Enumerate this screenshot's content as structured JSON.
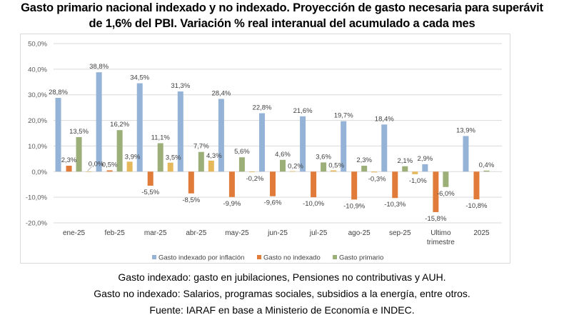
{
  "title_line1": "Gasto primario nacional indexado y no indexado. Proyección de gasto necesaria para superávit",
  "title_line2": "de 1,6% del PBI. Variación % real interanual del acumulado a cada mes",
  "notes": [
    "Gasto indexado: gasto en jubilaciones, Pensiones no contributivas y AUH.",
    "Gasto no indexado: Salarios, programas sociales, subsidios a la energía, entre otros.",
    "Fuente: IARAF en base a Ministerio de Economía e INDEC."
  ],
  "chart_data": {
    "type": "bar",
    "title": "Gasto primario nacional indexado y no indexado. Proyección de gasto necesaria para superávit de 1,6% del PBI. Variación % real interanual del acumulado a cada mes",
    "xlabel": "",
    "ylabel": "",
    "ylim": [
      -20,
      50
    ],
    "yticks": [
      50,
      40,
      30,
      20,
      10,
      0,
      -10,
      -20
    ],
    "ytick_labels": [
      "50,0%",
      "40,0%",
      "30,0%",
      "20,0%",
      "10,0%",
      "0,0%",
      "-10,0%",
      "-20,0%"
    ],
    "grid": true,
    "legend_position": "bottom",
    "categories": [
      "ene-25",
      "feb-25",
      "mar-25",
      "abr-25",
      "may-25",
      "jun-25",
      "jul-25",
      "ago-25",
      "sep-25",
      "Ultimo trimestre",
      "2025"
    ],
    "category_lines": [
      [
        "ene-25"
      ],
      [
        "feb-25"
      ],
      [
        "mar-25"
      ],
      [
        "abr-25"
      ],
      [
        "may-25"
      ],
      [
        "jun-25"
      ],
      [
        "jul-25"
      ],
      [
        "ago-25"
      ],
      [
        "sep-25"
      ],
      [
        "Ultimo",
        "trimestre"
      ],
      [
        "2025"
      ]
    ],
    "series": [
      {
        "name": "Gasto indexado por inflación",
        "color": "#95b3d7",
        "in_legend": true,
        "values": [
          28.8,
          38.8,
          34.5,
          31.3,
          28.4,
          22.8,
          21.6,
          19.7,
          18.4,
          2.9,
          13.9
        ],
        "labels": [
          "28,8%",
          "38,8%",
          "34,5%",
          "31,3%",
          "28,4%",
          "22,8%",
          "21,6%",
          "19,7%",
          "18,4%",
          "2,9%",
          "13,9%"
        ]
      },
      {
        "name": "Gasto no indexado",
        "color": "#e07b39",
        "in_legend": true,
        "values": [
          2.3,
          0.5,
          -5.5,
          -8.5,
          -9.9,
          -9.6,
          -10.0,
          -10.9,
          -10.3,
          -15.8,
          -10.8
        ],
        "labels": [
          "2,3%",
          "0,5%",
          "-5,5%",
          "-8,5%",
          "-9,9%",
          "-9,6%",
          "-10,0%",
          "-10,9%",
          "-10,3%",
          "-15,8%",
          "-10,8%"
        ]
      },
      {
        "name": "Gasto primario",
        "color": "#9caf78",
        "in_legend": true,
        "values": [
          13.5,
          16.2,
          11.1,
          7.7,
          5.6,
          4.6,
          3.6,
          2.3,
          2.1,
          -6.0,
          0.4
        ],
        "labels": [
          "13,5%",
          "16,2%",
          "11,1%",
          "7,7%",
          "5,6%",
          "4,6%",
          "3,6%",
          "2,3%",
          "2,1%",
          "-6,0%",
          "0,4%"
        ]
      },
      {
        "name": "",
        "color": "#e6b85c",
        "in_legend": false,
        "values": [
          0.0,
          3.9,
          3.5,
          4.3,
          -0.2,
          0.2,
          0.5,
          -0.3,
          -1.0,
          null,
          null
        ],
        "labels": [
          "0,0%",
          "3,9%",
          "3,5%",
          "4,3%",
          "-0,2%",
          "0,2%",
          "0,5%",
          "-0,3%",
          "-1,0%",
          null,
          null
        ]
      }
    ]
  }
}
